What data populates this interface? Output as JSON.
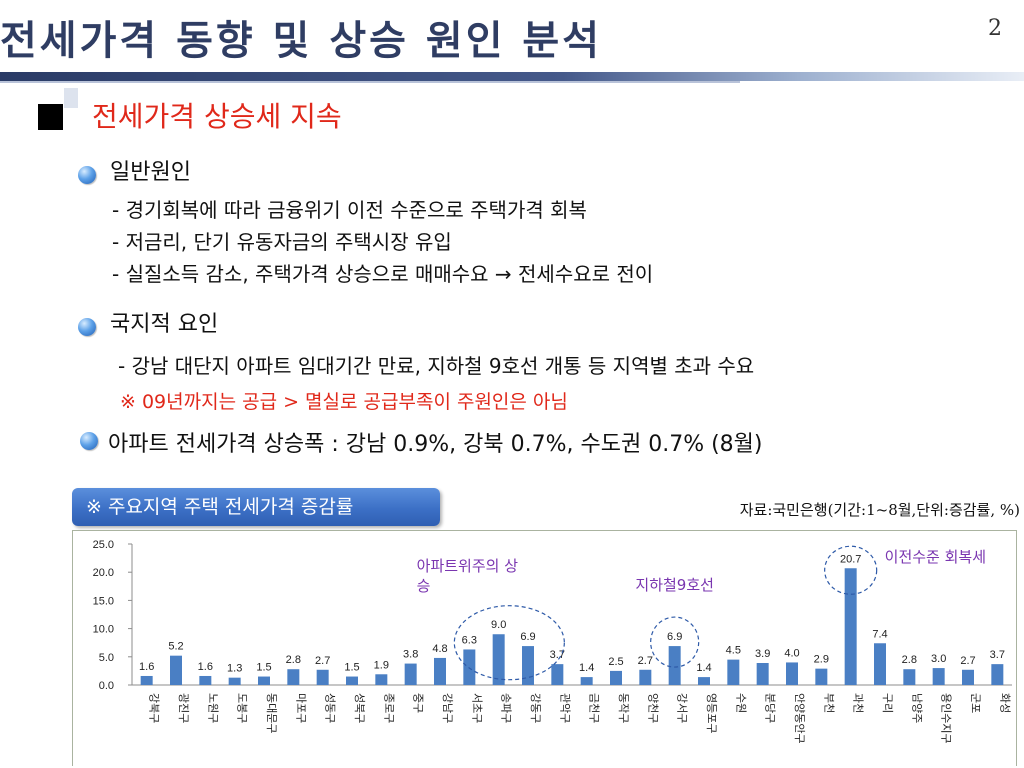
{
  "slide": {
    "title": "전세가격 동향 및 상승 원인 분석",
    "page_number": "2"
  },
  "section": {
    "heading": "전세가격 상승세 지속"
  },
  "general": {
    "heading": "일반원인",
    "lines": [
      "- 경기회복에 따라 금융위기 이전 수준으로 주택가격 회복",
      "- 저금리, 단기 유동자금의 주택시장 유입",
      "- 실질소득 감소, 주택가격 상승으로 매매수요 → 전세수요로 전이"
    ]
  },
  "local": {
    "heading": "국지적 요인",
    "line": "- 강남 대단지 아파트 임대기간 만료, 지하철 9호선 개통 등 지역별 초과 수요",
    "note": "※ 09년까지는 공급 > 멸실로 공급부족이 주원인은 아님"
  },
  "summary": {
    "text": "아파트 전세가격 상승폭 : 강남 0.9%, 강북 0.7%, 수도권 0.7%  (8월)"
  },
  "chart_banner": {
    "label": "※ 주요지역 주택 전세가격 증감률"
  },
  "source_note": "자료:국민은행(기간:1~8월,단위:증감률, %)",
  "chart_data": {
    "type": "bar",
    "categories": [
      "강북구",
      "광진구",
      "노원구",
      "도봉구",
      "동대문구",
      "마포구",
      "성동구",
      "성북구",
      "종로구",
      "중구",
      "강남구",
      "서초구",
      "송파구",
      "강동구",
      "관악구",
      "금천구",
      "동작구",
      "양천구",
      "강서구",
      "영등포구",
      "수원",
      "분당구",
      "안양동안구",
      "부천",
      "과천",
      "구리",
      "남양주",
      "용인수지구",
      "군포",
      "화성"
    ],
    "values": [
      1.6,
      5.2,
      1.6,
      1.3,
      1.5,
      2.8,
      2.7,
      1.5,
      1.9,
      3.8,
      4.8,
      6.3,
      9.0,
      6.9,
      3.7,
      1.4,
      2.5,
      2.7,
      6.9,
      1.4,
      4.5,
      3.9,
      4.0,
      2.9,
      20.7,
      7.4,
      2.8,
      3.0,
      2.7,
      3.7
    ],
    "value_labels": [
      "1.6",
      "5.2",
      "1.6",
      "1.3",
      "1.5",
      "2.8",
      "2.7",
      "1.5",
      "1.9",
      "3.8",
      "4.8",
      "6.3",
      "9.0",
      "6.9",
      "3.7",
      "1.4",
      "2.5",
      "2.7",
      "6.9",
      "1.4",
      "4.5",
      "3.9",
      "4.0",
      "2.9",
      "20.7",
      "7.4",
      "2.8",
      "3.0",
      "2.7",
      "3.7"
    ],
    "yticks": [
      "0.0",
      "5.0",
      "10.0",
      "15.0",
      "20.0",
      "25.0"
    ],
    "ylim": [
      0,
      25
    ],
    "bar_color": "#4a7fc4",
    "annotations": [
      {
        "text": "아파트위주의 상승",
        "color": "#7a36b0"
      },
      {
        "text": "지하철9호선",
        "color": "#7a36b0"
      },
      {
        "text": "이전수준 회복세",
        "color": "#7a36b0"
      }
    ]
  }
}
